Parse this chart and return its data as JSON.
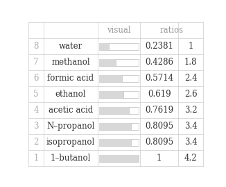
{
  "rows": [
    {
      "rank": 8,
      "name": "water",
      "visual": 0.2381,
      "ratio": "0.2381",
      "ratio_num": "1"
    },
    {
      "rank": 7,
      "name": "methanol",
      "visual": 0.4286,
      "ratio": "0.4286",
      "ratio_num": "1.8"
    },
    {
      "rank": 6,
      "name": "formic acid",
      "visual": 0.5714,
      "ratio": "0.5714",
      "ratio_num": "2.4"
    },
    {
      "rank": 5,
      "name": "ethanol",
      "visual": 0.619,
      "ratio": "0.619",
      "ratio_num": "2.6"
    },
    {
      "rank": 4,
      "name": "acetic acid",
      "visual": 0.7619,
      "ratio": "0.7619",
      "ratio_num": "3.2"
    },
    {
      "rank": 3,
      "name": "N–propanol",
      "visual": 0.8095,
      "ratio": "0.8095",
      "ratio_num": "3.4"
    },
    {
      "rank": 2,
      "name": "isopropanol",
      "visual": 0.8095,
      "ratio": "0.8095",
      "ratio_num": "3.4"
    },
    {
      "rank": 1,
      "name": "1–butanol",
      "visual": 1.0,
      "ratio": "1",
      "ratio_num": "4.2"
    }
  ],
  "header_visual": "visual",
  "header_ratio": "ratios",
  "bg_color": "#ffffff",
  "header_text_color": "#999999",
  "rank_text_color": "#aaaaaa",
  "name_text_color": "#333333",
  "value_text_color": "#333333",
  "bar_fill_color": "#d8d8d8",
  "bar_border_color": "#bbbbbb",
  "grid_color": "#cccccc",
  "font_size": 8.5,
  "col_bounds": [
    0.0,
    0.09,
    0.395,
    0.64,
    0.855,
    1.0
  ]
}
